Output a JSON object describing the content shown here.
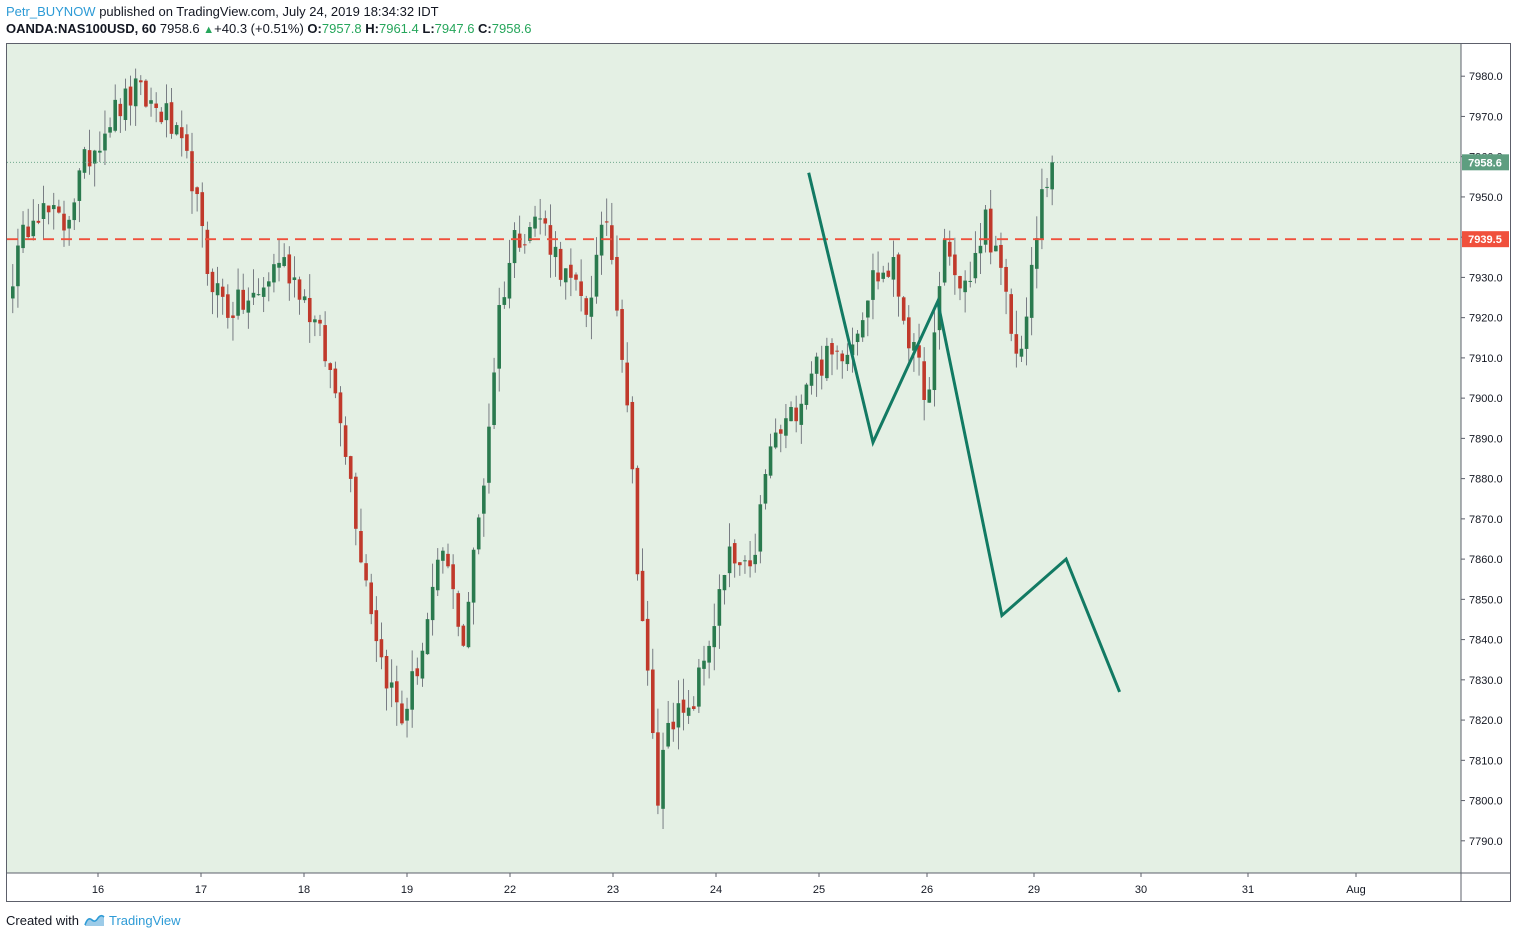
{
  "header": {
    "author": "Petr_BUYNOW",
    "published_text": "published on TradingView.com, July 24, 2019 18:34:32 IDT",
    "symbol": "OANDA:NAS100USD, 60",
    "last": "7958.6",
    "change": "+40.3 (+0.51%)",
    "o_label": "O:",
    "o_value": "7957.8",
    "h_label": "H:",
    "h_value": "7961.4",
    "l_label": "L:",
    "l_value": "7947.6",
    "c_label": "C:",
    "c_value": "7958.6"
  },
  "footer": {
    "created_with": "Created with",
    "brand": "TradingView"
  },
  "colors": {
    "background": "#e4f0e4",
    "bull": "#2a7a4e",
    "bear": "#c0392b",
    "wick": "#5d606b",
    "dashed_level": "#f0503c",
    "forecast": "#127a63",
    "last_price_label": "#5e9e80",
    "level_label": "#f0503c"
  },
  "chart_data": {
    "type": "candlestick",
    "symbol": "OANDA:NAS100USD",
    "interval": "60",
    "ylim": [
      7782,
      7988
    ],
    "y_ticks": [
      "7980.0",
      "7970.0",
      "7960.0",
      "7950.0",
      "7940.0",
      "7930.0",
      "7920.0",
      "7910.0",
      "7900.0",
      "7890.0",
      "7880.0",
      "7870.0",
      "7860.0",
      "7850.0",
      "7840.0",
      "7830.0",
      "7820.0",
      "7810.0",
      "7800.0",
      "7790.0"
    ],
    "y_tick_values": [
      7980,
      7970,
      7960,
      7950,
      7940,
      7930,
      7920,
      7910,
      7900,
      7890,
      7880,
      7870,
      7860,
      7850,
      7840,
      7830,
      7820,
      7810,
      7800,
      7790
    ],
    "x_ticks": [
      "16",
      "17",
      "18",
      "19",
      "22",
      "23",
      "24",
      "25",
      "26",
      "29",
      "30",
      "31",
      "Aug"
    ],
    "session_index_for_ticks": [
      0.85,
      1.85,
      2.85,
      3.85,
      4.85,
      5.85,
      6.85,
      7.85,
      8.85,
      9.85,
      10.85,
      11.85,
      12.85
    ],
    "last_price": 7958.6,
    "last_price_label": "7958.6",
    "horizontal_level": 7939.5,
    "horizontal_level_label": "7939.5",
    "anchors": [
      {
        "i": 0,
        "p": 7931
      },
      {
        "i": 4,
        "p": 7948
      },
      {
        "i": 10,
        "p": 7943
      },
      {
        "i": 14,
        "p": 7958
      },
      {
        "i": 19,
        "p": 7970
      },
      {
        "i": 24,
        "p": 7976
      },
      {
        "i": 30,
        "p": 7970
      },
      {
        "i": 35,
        "p": 7955
      },
      {
        "i": 38,
        "p": 7932
      },
      {
        "i": 42,
        "p": 7922
      },
      {
        "i": 48,
        "p": 7925
      },
      {
        "i": 52,
        "p": 7935
      },
      {
        "i": 56,
        "p": 7928
      },
      {
        "i": 60,
        "p": 7915
      },
      {
        "i": 64,
        "p": 7897
      },
      {
        "i": 68,
        "p": 7862
      },
      {
        "i": 72,
        "p": 7835
      },
      {
        "i": 76,
        "p": 7820
      },
      {
        "i": 80,
        "p": 7838
      },
      {
        "i": 84,
        "p": 7862
      },
      {
        "i": 88,
        "p": 7840
      },
      {
        "i": 92,
        "p": 7880
      },
      {
        "i": 95,
        "p": 7922
      },
      {
        "i": 98,
        "p": 7940
      },
      {
        "i": 103,
        "p": 7945
      },
      {
        "i": 108,
        "p": 7930
      },
      {
        "i": 112,
        "p": 7922
      },
      {
        "i": 116,
        "p": 7945
      },
      {
        "i": 118,
        "p": 7925
      },
      {
        "i": 120,
        "p": 7900
      },
      {
        "i": 122,
        "p": 7860
      },
      {
        "i": 124,
        "p": 7830
      },
      {
        "i": 126,
        "p": 7800
      },
      {
        "i": 128,
        "p": 7822
      },
      {
        "i": 132,
        "p": 7820
      },
      {
        "i": 136,
        "p": 7840
      },
      {
        "i": 140,
        "p": 7860
      },
      {
        "i": 144,
        "p": 7855
      },
      {
        "i": 148,
        "p": 7888
      },
      {
        "i": 152,
        "p": 7895
      },
      {
        "i": 156,
        "p": 7908
      },
      {
        "i": 160,
        "p": 7910
      },
      {
        "i": 164,
        "p": 7915
      },
      {
        "i": 168,
        "p": 7930
      },
      {
        "i": 172,
        "p": 7932
      },
      {
        "i": 176,
        "p": 7910
      },
      {
        "i": 179,
        "p": 7900
      },
      {
        "i": 182,
        "p": 7940
      },
      {
        "i": 184,
        "p": 7930
      },
      {
        "i": 187,
        "p": 7928
      },
      {
        "i": 190,
        "p": 7945
      },
      {
        "i": 193,
        "p": 7930
      },
      {
        "i": 196,
        "p": 7910
      },
      {
        "i": 198,
        "p": 7920
      },
      {
        "i": 201,
        "p": 7950
      },
      {
        "i": 203,
        "p": 7958
      }
    ],
    "forecast_path": [
      {
        "x": "24.9",
        "p": 7956
      },
      {
        "x": "25.5",
        "p": 7889
      },
      {
        "x": "26.1",
        "p": 7924
      },
      {
        "x": "26.7",
        "p": 7846
      },
      {
        "x": "29.3",
        "p": 7860
      },
      {
        "x": "29.8",
        "p": 7827
      }
    ]
  }
}
